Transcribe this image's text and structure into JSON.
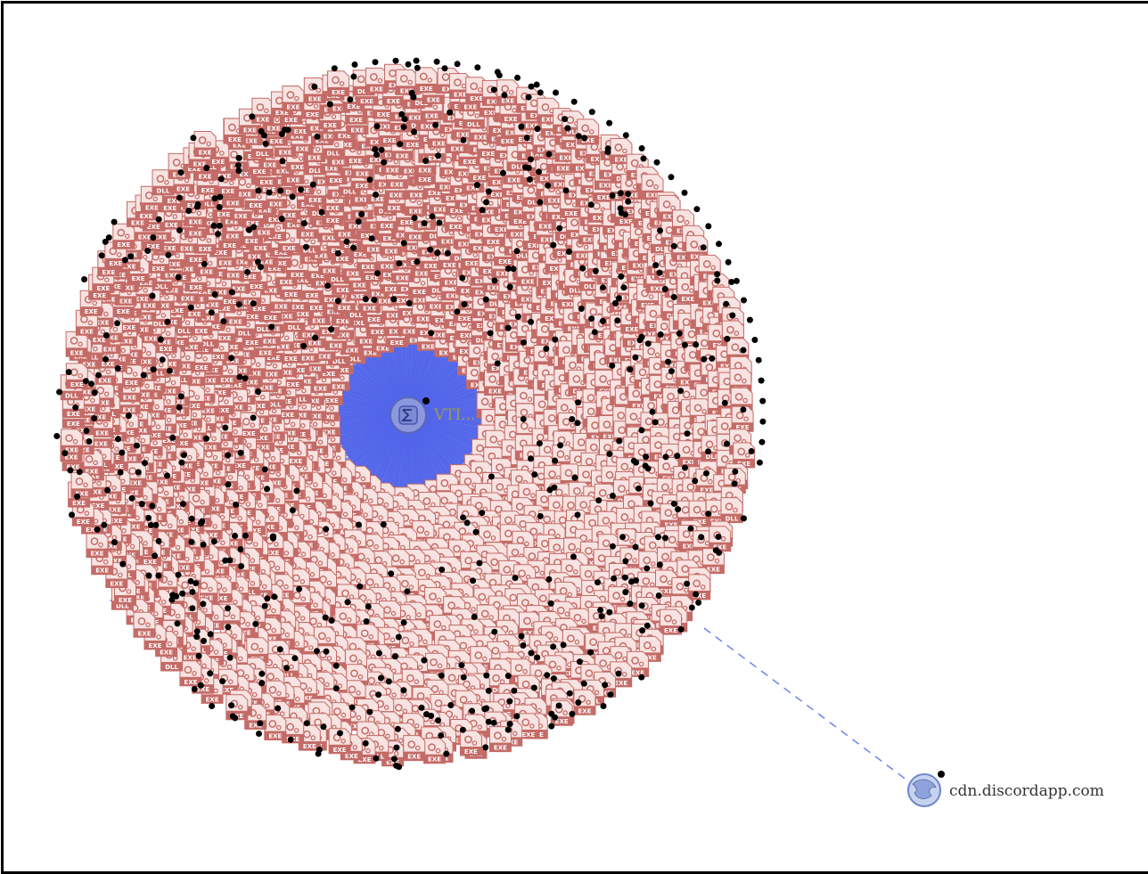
{
  "graph": {
    "center_node": {
      "label": "VTI...",
      "icon": "sigma-icon"
    },
    "external_node": {
      "label": "cdn.discordapp.com",
      "icon": "globe-icon"
    },
    "file_node_types": [
      "EXE",
      "DLL"
    ],
    "colors": {
      "file_node_fill": "#f7e3e1",
      "file_node_border": "#c46b67",
      "file_node_label_bg": "#c46b67",
      "edge_color": "#4a5be8",
      "dashed_edge_color": "#6d83f2",
      "dot_color": "#000000",
      "center_node_fill": "#8b98dd",
      "frame_color": "#000000"
    }
  }
}
